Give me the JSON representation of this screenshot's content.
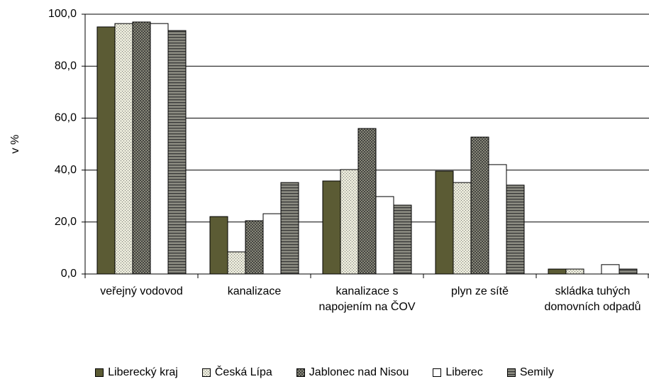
{
  "chart_data": {
    "type": "bar",
    "y_label": "v %",
    "categories": [
      "veřejný vodovod",
      "kanalizace",
      "kanalizace s napojením na ČOV",
      "plyn ze sítě",
      "skládka tuhých domovních odpadů"
    ],
    "series": [
      {
        "name": "Liberecký kraj",
        "color": "#5b5b34",
        "pattern": "solid",
        "values": [
          95.1,
          22.1,
          35.8,
          39.6,
          1.9
        ]
      },
      {
        "name": "Česká Lípa",
        "color": "#e8e8d8",
        "pattern": "dots",
        "values": [
          96.4,
          8.5,
          40.2,
          35.2,
          1.9
        ]
      },
      {
        "name": "Jablonec nad Nisou",
        "color": "#9a9a88",
        "pattern": "crosshatch",
        "values": [
          97.0,
          20.5,
          56.0,
          52.7,
          0
        ]
      },
      {
        "name": "Liberec",
        "color": "#ffffff",
        "pattern": "solid",
        "values": [
          96.4,
          23.2,
          29.8,
          42.1,
          3.6
        ]
      },
      {
        "name": "Semily",
        "color": "#8a8a80",
        "pattern": "hlines",
        "values": [
          93.7,
          35.2,
          26.5,
          34.2,
          1.9
        ]
      }
    ],
    "ylim": [
      0,
      100
    ],
    "yticks": [
      {
        "value": 0,
        "label": "0,0"
      },
      {
        "value": 20,
        "label": "20,0"
      },
      {
        "value": 40,
        "label": "40,0"
      },
      {
        "value": 60,
        "label": "60,0"
      },
      {
        "value": 80,
        "label": "80,0"
      },
      {
        "value": 100,
        "label": "100,0"
      }
    ],
    "grid": true
  }
}
